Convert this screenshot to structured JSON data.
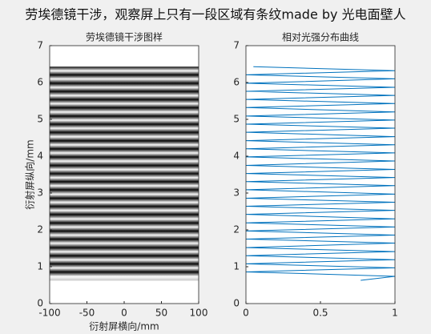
{
  "title": "劳埃德镜干涉，观察屏上只有一段区域有条纹made by 光电面壁人",
  "chart_data": [
    {
      "type": "image",
      "title": "劳埃德镜干涉图样",
      "xlabel": "衍射屏横向/mm",
      "ylabel": "衍射屏纵向/mm",
      "xlim": [
        -100,
        100
      ],
      "xticks": [
        -100,
        -50,
        0,
        50,
        100
      ],
      "ylim": [
        0,
        7
      ],
      "yticks": [
        0,
        1,
        2,
        3,
        4,
        5,
        6,
        7
      ],
      "colormap": "gray",
      "y": [
        6.43,
        6.32,
        6.21,
        6.1,
        5.98,
        5.87,
        5.76,
        5.65,
        5.54,
        5.43,
        5.32,
        5.2,
        5.09,
        4.98,
        4.87,
        4.76,
        4.65,
        4.53,
        4.42,
        4.31,
        4.2,
        4.09,
        3.98,
        3.87,
        3.75,
        3.64,
        3.53,
        3.42,
        3.31,
        3.2,
        3.09,
        2.97,
        2.86,
        2.75,
        2.64,
        2.53,
        2.42,
        2.3,
        2.19,
        2.08,
        1.97,
        1.86,
        1.75,
        1.64,
        1.52,
        1.41,
        1.3,
        1.19,
        1.08,
        0.97,
        0.86,
        0.74,
        0.63
      ],
      "values": [
        0.05,
        1,
        0,
        1,
        0,
        1,
        0,
        1,
        0,
        1,
        0,
        1,
        0,
        1,
        0,
        1,
        0,
        1,
        0,
        1,
        0,
        1,
        0,
        1,
        0,
        1,
        0,
        1,
        0,
        1,
        0,
        1,
        0,
        1,
        0,
        1,
        0,
        1,
        0,
        1,
        0,
        1,
        0,
        1,
        0,
        1,
        0,
        1,
        0,
        1,
        0,
        1,
        0.77
      ]
    },
    {
      "type": "line",
      "title": "相对光强分布曲线",
      "xlim": [
        0,
        1
      ],
      "xticks": [
        0,
        0.5,
        1
      ],
      "ylim": [
        0,
        7
      ],
      "yticks": [
        0,
        1,
        2,
        3,
        4,
        5,
        6,
        7
      ],
      "series": [
        {
          "color": "#0072bd",
          "x": [
            0.05,
            1,
            0,
            1,
            0,
            1,
            0,
            1,
            0,
            1,
            0,
            1,
            0,
            1,
            0,
            1,
            0,
            1,
            0,
            1,
            0,
            1,
            0,
            1,
            0,
            1,
            0,
            1,
            0,
            1,
            0,
            1,
            0,
            1,
            0,
            1,
            0,
            1,
            0,
            1,
            0,
            1,
            0,
            1,
            0,
            1,
            0,
            1,
            0,
            1,
            0,
            1,
            0.77
          ],
          "y": [
            6.43,
            6.32,
            6.21,
            6.1,
            5.98,
            5.87,
            5.76,
            5.65,
            5.54,
            5.43,
            5.32,
            5.2,
            5.09,
            4.98,
            4.87,
            4.76,
            4.65,
            4.53,
            4.42,
            4.31,
            4.2,
            4.09,
            3.98,
            3.87,
            3.75,
            3.64,
            3.53,
            3.42,
            3.31,
            3.2,
            3.09,
            2.97,
            2.86,
            2.75,
            2.64,
            2.53,
            2.42,
            2.3,
            2.19,
            2.08,
            1.97,
            1.86,
            1.75,
            1.64,
            1.52,
            1.41,
            1.3,
            1.19,
            1.08,
            0.97,
            0.86,
            0.74,
            0.63
          ]
        }
      ]
    }
  ]
}
